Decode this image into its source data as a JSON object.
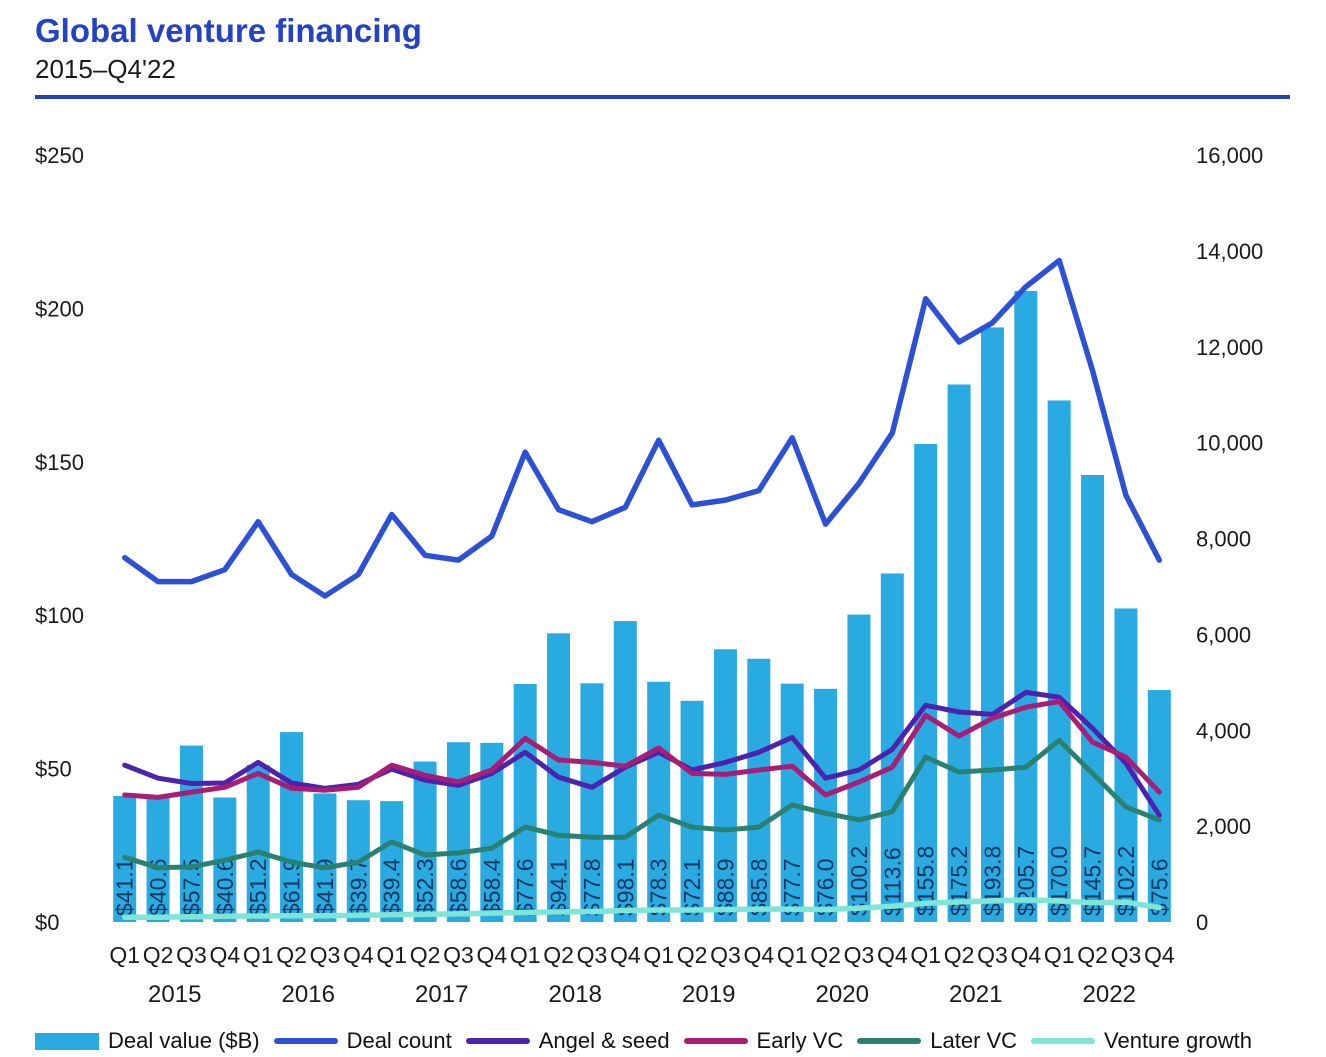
{
  "header": {
    "title": "Global venture financing",
    "subtitle": "2015–Q4'22"
  },
  "colors": {
    "accent_blue": "#2343C3",
    "bar_cyan": "#29ABE2",
    "deal_count_blue": "#2D51D4",
    "angel_seed_purple": "#4E22AC",
    "early_vc_magenta": "#A81D75",
    "later_vc_teal": "#2A8172",
    "venture_growth_aqua": "#7FE5D6",
    "bar_label_navy": "#173763",
    "axis_text": "#1a1a1a"
  },
  "legend": {
    "items": [
      {
        "label": "Deal value ($B)",
        "swatch": "bar",
        "color": "#29ABE2"
      },
      {
        "label": "Deal count",
        "swatch": "line",
        "color": "#2D51D4"
      },
      {
        "label": "Angel & seed",
        "swatch": "line",
        "color": "#4E22AC"
      },
      {
        "label": "Early VC",
        "swatch": "line",
        "color": "#A81D75"
      },
      {
        "label": "Later VC",
        "swatch": "line",
        "color": "#2A8172"
      },
      {
        "label": "Venture growth",
        "swatch": "line",
        "color": "#7FE5D6"
      }
    ]
  },
  "chart_data": {
    "type": "bar",
    "subtype": "combo-bar-line-dual-axis",
    "title": "Global venture financing",
    "subtitle": "2015–Q4'22",
    "grid": false,
    "legend_position": "bottom",
    "x_tick_labels": [
      "Q1",
      "Q2",
      "Q3",
      "Q4",
      "Q1",
      "Q2",
      "Q3",
      "Q4",
      "Q1",
      "Q2",
      "Q3",
      "Q4",
      "Q1",
      "Q2",
      "Q3",
      "Q4",
      "Q1",
      "Q2",
      "Q3",
      "Q4",
      "Q1",
      "Q2",
      "Q3",
      "Q4",
      "Q1",
      "Q2",
      "Q3",
      "Q4",
      "Q1",
      "Q2",
      "Q3",
      "Q4"
    ],
    "year_labels": [
      "2015",
      "2016",
      "2017",
      "2018",
      "2019",
      "2020",
      "2021",
      "2022"
    ],
    "left_axis": {
      "title": "Deal value ($B)",
      "min": 0,
      "max": 250,
      "tick_values": [
        0,
        50,
        100,
        150,
        200,
        250
      ],
      "tick_labels": [
        "$0",
        "$50",
        "$100",
        "$150",
        "$200",
        "$250"
      ]
    },
    "right_axis": {
      "title": "Deal count",
      "min": 0,
      "max": 16000,
      "tick_values": [
        0,
        2000,
        4000,
        6000,
        8000,
        10000,
        12000,
        14000,
        16000
      ],
      "tick_labels": [
        "0",
        "2,000",
        "4,000",
        "6,000",
        "8,000",
        "10,000",
        "12,000",
        "14,000",
        "16,000"
      ]
    },
    "bar_series": {
      "name": "Deal value ($B)",
      "axis": "left",
      "values": [
        41.1,
        40.6,
        57.5,
        40.6,
        51.2,
        61.9,
        41.9,
        39.7,
        39.4,
        52.3,
        58.6,
        58.4,
        77.6,
        94.1,
        77.8,
        98.1,
        78.3,
        72.1,
        88.9,
        85.8,
        77.7,
        76.0,
        100.2,
        113.6,
        155.8,
        175.2,
        193.8,
        205.7,
        170.0,
        145.7,
        102.2,
        75.6
      ],
      "value_labels": [
        "$41.1",
        "$40.6",
        "$57.5",
        "$40.6",
        "$51.2",
        "$61.9",
        "$41.9",
        "$39.7",
        "$39.4",
        "$52.3",
        "$58.6",
        "$58.4",
        "$77.6",
        "$94.1",
        "$77.8",
        "$98.1",
        "$78.3",
        "$72.1",
        "$88.9",
        "$85.8",
        "$77.7",
        "$76.0",
        "$100.2",
        "$113.6",
        "$155.8",
        "$175.2",
        "$193.8",
        "$205.7",
        "$170.0",
        "$145.7",
        "$102.2",
        "$75.6"
      ]
    },
    "line_series": [
      {
        "name": "Deal count",
        "axis": "right",
        "color": "#2D51D4",
        "width": 5.5,
        "values": [
          7600,
          7100,
          7100,
          7350,
          8350,
          7250,
          6800,
          7250,
          8500,
          7650,
          7550,
          8050,
          9800,
          8600,
          8350,
          8650,
          10050,
          8700,
          8800,
          9000,
          10100,
          8300,
          9150,
          10200,
          13000,
          12100,
          12500,
          13250,
          13800,
          11500,
          8900,
          7550
        ]
      },
      {
        "name": "Angel & seed",
        "axis": "right",
        "color": "#4E22AC",
        "width": 5,
        "values": [
          3270,
          3000,
          2890,
          2900,
          3330,
          2900,
          2790,
          2870,
          3190,
          2960,
          2850,
          3100,
          3540,
          3020,
          2810,
          3230,
          3540,
          3170,
          3330,
          3540,
          3850,
          3000,
          3170,
          3600,
          4520,
          4380,
          4330,
          4790,
          4690,
          4040,
          3310,
          2230
        ]
      },
      {
        "name": "Early VC",
        "axis": "right",
        "color": "#A81D75",
        "width": 5,
        "values": [
          2650,
          2600,
          2710,
          2810,
          3100,
          2790,
          2750,
          2810,
          3270,
          3060,
          2920,
          3170,
          3830,
          3380,
          3330,
          3250,
          3630,
          3100,
          3080,
          3170,
          3250,
          2650,
          2920,
          3230,
          4310,
          3880,
          4250,
          4480,
          4600,
          3750,
          3440,
          2710
        ]
      },
      {
        "name": "Later VC",
        "axis": "right",
        "color": "#2A8172",
        "width": 5,
        "values": [
          1350,
          1130,
          1150,
          1290,
          1460,
          1250,
          1130,
          1250,
          1670,
          1400,
          1440,
          1540,
          1980,
          1810,
          1770,
          1770,
          2230,
          1980,
          1920,
          1980,
          2440,
          2270,
          2130,
          2300,
          3440,
          3130,
          3170,
          3230,
          3790,
          3100,
          2400,
          2130
        ]
      },
      {
        "name": "Venture growth",
        "axis": "right",
        "color": "#7FE5D6",
        "width": 5.5,
        "values": [
          100,
          100,
          110,
          120,
          125,
          130,
          130,
          140,
          150,
          160,
          170,
          185,
          200,
          210,
          220,
          240,
          250,
          250,
          260,
          270,
          270,
          260,
          290,
          330,
          390,
          420,
          440,
          460,
          440,
          400,
          415,
          300
        ]
      }
    ]
  }
}
